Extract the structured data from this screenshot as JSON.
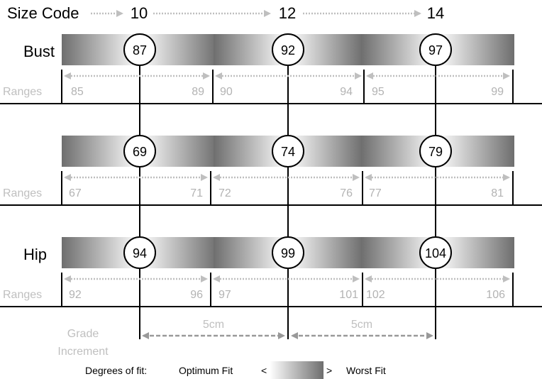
{
  "header": {
    "label": "Size Code",
    "codes": [
      "10",
      "12",
      "14"
    ]
  },
  "rows": [
    {
      "name": "Bust",
      "range_label": "Ranges",
      "centers": [
        "87",
        "92",
        "97"
      ],
      "ranges": [
        [
          "85",
          "89"
        ],
        [
          "90",
          "94"
        ],
        [
          "95",
          "99"
        ]
      ]
    },
    {
      "name": "",
      "range_label": "Ranges",
      "centers": [
        "69",
        "74",
        "79"
      ],
      "ranges": [
        [
          "67",
          "71"
        ],
        [
          "72",
          "76"
        ],
        [
          "77",
          "81"
        ]
      ]
    },
    {
      "name": "Hip",
      "range_label": "Ranges",
      "centers": [
        "94",
        "99",
        "104"
      ],
      "ranges": [
        [
          "92",
          "96"
        ],
        [
          "97",
          "101"
        ],
        [
          "102",
          "106"
        ]
      ]
    }
  ],
  "grade": {
    "label_line1": "Grade",
    "label_line2": "Increment",
    "increments": [
      "5cm",
      "5cm"
    ]
  },
  "legend": {
    "prefix": "Degrees of fit:",
    "left": "Optimum Fit",
    "lt": "<",
    "gt": ">",
    "right": "Worst Fit"
  },
  "colors": {
    "optimum": "#ffffff",
    "worst": "#6e6e6e"
  }
}
